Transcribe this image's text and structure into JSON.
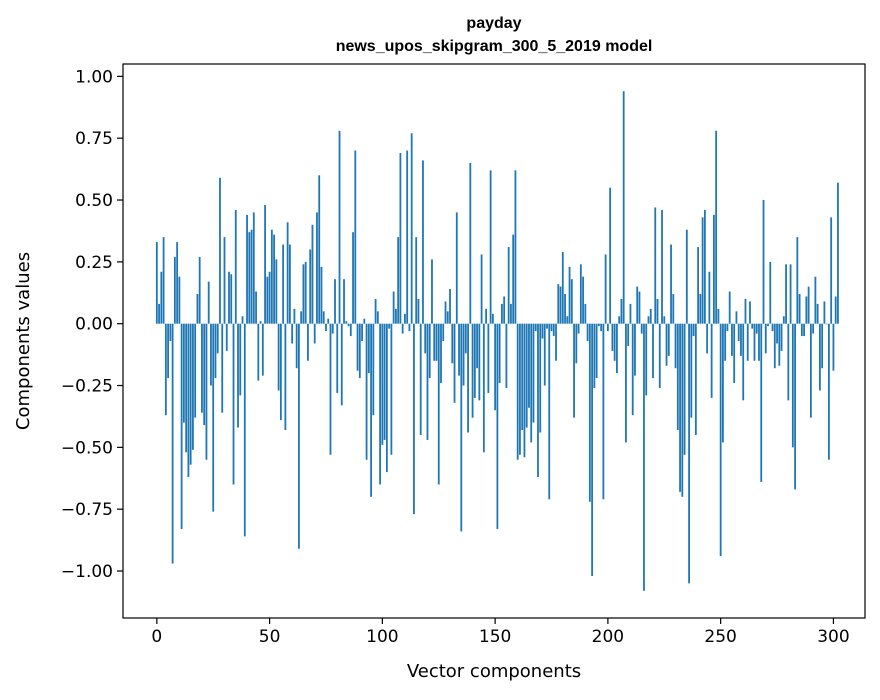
{
  "chart_data": {
    "type": "bar",
    "title_line1": "payday",
    "title_line2": "news_upos_skipgram_300_5_2019 model",
    "xlabel": "Vector components",
    "ylabel": "Components values",
    "xlim": [
      -15,
      314
    ],
    "ylim": [
      -1.19,
      1.05
    ],
    "x_ticks": [
      0,
      50,
      100,
      150,
      200,
      250,
      300
    ],
    "x_tick_labels": [
      "0",
      "50",
      "100",
      "150",
      "200",
      "250",
      "300"
    ],
    "y_ticks": [
      1.0,
      0.75,
      0.5,
      0.25,
      0.0,
      -0.25,
      -0.5,
      -0.75,
      -1.0
    ],
    "y_tick_labels": [
      "1.00",
      "0.75",
      "0.50",
      "0.25",
      "0.00",
      "−0.25",
      "−0.50",
      "−0.75",
      "−1.00"
    ],
    "grid": false,
    "bar_color": "#1f77b4",
    "values": [
      0.33,
      0.08,
      0.21,
      0.35,
      -0.37,
      -0.22,
      -0.07,
      -0.97,
      0.27,
      0.33,
      0.19,
      -0.83,
      -0.4,
      -0.52,
      -0.62,
      -0.57,
      -0.51,
      -0.38,
      0.12,
      0.27,
      -0.36,
      -0.41,
      -0.55,
      0.17,
      -0.25,
      -0.76,
      -0.22,
      -0.12,
      0.59,
      -0.36,
      0.35,
      -0.11,
      0.21,
      0.2,
      -0.65,
      0.46,
      -0.42,
      -0.29,
      0.03,
      -0.86,
      0.44,
      0.37,
      0.38,
      0.45,
      0.13,
      -0.23,
      0.01,
      -0.21,
      0.48,
      0.19,
      0.21,
      0.38,
      0.36,
      0.26,
      -0.27,
      -0.39,
      0.32,
      -0.43,
      0.41,
      0.32,
      -0.08,
      0.06,
      -0.18,
      -0.91,
      0.05,
      0.24,
      0.25,
      -0.15,
      0.3,
      0.4,
      -0.08,
      0.45,
      0.6,
      0.23,
      0.05,
      -0.03,
      0.02,
      -0.53,
      -0.04,
      0.18,
      -0.28,
      0.78,
      -0.33,
      0.18,
      0.01,
      -0.01,
      -0.05,
      0.37,
      0.7,
      -0.19,
      -0.22,
      -0.07,
      0.02,
      -0.55,
      -0.2,
      -0.7,
      -0.37,
      0.1,
      0.05,
      -0.65,
      -0.49,
      -0.47,
      -0.6,
      -0.02,
      -0.53,
      0.13,
      0.06,
      0.35,
      0.69,
      -0.04,
      0.04,
      0.7,
      -0.03,
      0.77,
      -0.77,
      0.35,
      0.1,
      -0.45,
      0.66,
      -0.12,
      -0.47,
      -0.22,
      0.26,
      -0.15,
      -0.15,
      -0.65,
      -0.24,
      -0.07,
      0.09,
      0.05,
      0.14,
      -0.16,
      -0.32,
      0.45,
      -0.21,
      -0.84,
      -0.25,
      -0.12,
      -0.44,
      0.65,
      -0.38,
      -0.3,
      -0.18,
      -0.31,
      0.28,
      -0.52,
      0.06,
      -0.28,
      0.62,
      0.04,
      -0.35,
      -0.83,
      -0.24,
      0.08,
      0.11,
      -0.26,
      0.31,
      0.08,
      0.36,
      0.62,
      -0.55,
      -0.53,
      -0.43,
      -0.54,
      -0.42,
      -0.34,
      -0.48,
      -0.4,
      -0.03,
      -0.62,
      -0.44,
      -0.06,
      -0.25,
      -0.02,
      -0.71,
      -0.03,
      -0.05,
      -0.15,
      0.16,
      0.15,
      0.29,
      0.12,
      0.03,
      0.23,
      0.18,
      -0.38,
      -0.16,
      -0.04,
      0.24,
      0.19,
      0.08,
      -0.07,
      -0.72,
      -1.02,
      -0.26,
      -0.22,
      -0.01,
      -0.03,
      -0.71,
      0.28,
      -0.03,
      0.55,
      -0.11,
      -0.15,
      -0.2,
      0.03,
      0.1,
      0.94,
      -0.48,
      -0.09,
      0.08,
      -0.37,
      -0.21,
      0.15,
      0.13,
      -0.04,
      -1.08,
      -0.29,
      0.03,
      0.06,
      -0.22,
      0.47,
      0.1,
      -0.26,
      0.46,
      0.03,
      -0.17,
      -0.13,
      0.32,
      0.12,
      -0.18,
      -0.43,
      -0.68,
      -0.7,
      -0.53,
      0.38,
      -1.05,
      -0.38,
      -0.05,
      -0.45,
      0.31,
      0.12,
      0.43,
      0.46,
      -0.12,
      0.21,
      -0.3,
      0.44,
      0.78,
      0.06,
      -0.94,
      -0.48,
      -0.15,
      -0.03,
      0.13,
      -0.13,
      -0.24,
      0.05,
      -0.07,
      -0.13,
      -0.31,
      0.1,
      -0.15,
      0.09,
      -0.02,
      -0.15,
      -0.04,
      -0.15,
      -0.64,
      0.5,
      -0.12,
      -0.01,
      0.25,
      -0.03,
      -0.18,
      -0.08,
      -0.17,
      -0.11,
      0.03,
      0.24,
      -0.31,
      0.24,
      -0.5,
      -0.67,
      0.35,
      0.12,
      -0.05,
      -0.05,
      0.11,
      0.15,
      -0.38,
      -0.04,
      0.19,
      0.08,
      -0.27,
      -0.18,
      0.09,
      0.0,
      -0.55,
      0.43,
      -0.19,
      0.11,
      0.57
    ]
  }
}
